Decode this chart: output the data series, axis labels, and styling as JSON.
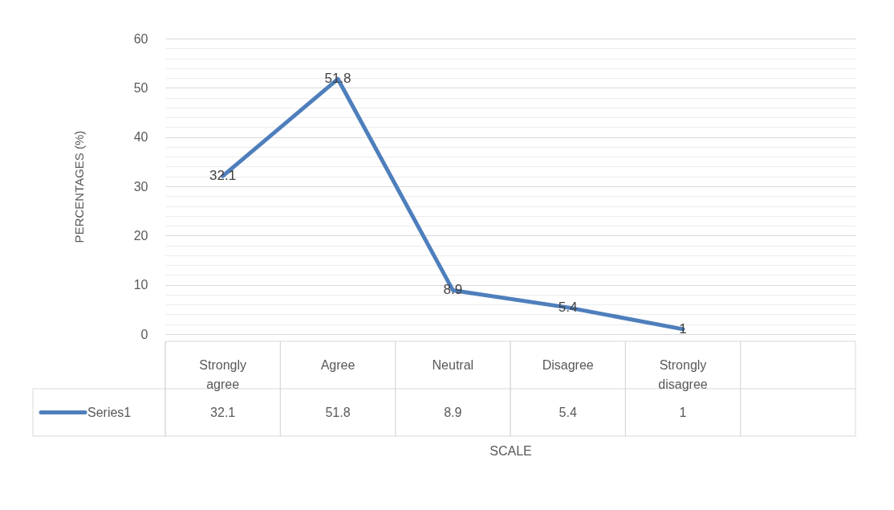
{
  "chart_data": {
    "type": "line",
    "ylabel": "PERCENTAGES (%)",
    "xlabel": "SCALE",
    "categories": [
      "Strongly agree",
      "Agree",
      "Neutral",
      "Disagree",
      "Strongly disagree",
      null
    ],
    "series": [
      {
        "name": "Series1",
        "color": "#4e7fbc",
        "values": [
          32.1,
          51.8,
          8.9,
          5.4,
          1,
          null
        ]
      }
    ],
    "annotations": [
      {
        "text": "32.1",
        "x": "Strongly agree",
        "y": 32.1
      },
      {
        "text": "51.8",
        "x": "Agree",
        "y": 51.8
      },
      {
        "text": "8.9",
        "x": "Neutral",
        "y": 8.9
      },
      {
        "text": "5.4",
        "x": "Disagree",
        "y": 5.4
      },
      {
        "text": "1",
        "x": "Strongly disagree",
        "y": 1
      }
    ],
    "ylim": [
      0,
      60
    ],
    "yticks": [
      0,
      {
        "value": 2,
        "label": null
      },
      {
        "value": 4,
        "label": null
      },
      {
        "value": 6,
        "label": null
      },
      {
        "value": 8,
        "label": null
      },
      10,
      {
        "value": 12,
        "label": null
      },
      {
        "value": 14,
        "label": null
      },
      {
        "value": 16,
        "label": null
      },
      {
        "value": 18,
        "label": null
      },
      20,
      {
        "value": 22,
        "label": null
      },
      {
        "value": 24,
        "label": null
      },
      {
        "value": 26,
        "label": null
      },
      {
        "value": 28,
        "label": null
      },
      30,
      {
        "value": 32,
        "label": null
      },
      {
        "value": 34,
        "label": null
      },
      {
        "value": 36,
        "label": null
      },
      {
        "value": 38,
        "label": null
      },
      40,
      {
        "value": 42,
        "label": null
      },
      {
        "value": 44,
        "label": null
      },
      {
        "value": 46,
        "label": null
      },
      {
        "value": 48,
        "label": null
      },
      50,
      {
        "value": 52,
        "label": null
      },
      {
        "value": 54,
        "label": null
      },
      {
        "value": 56,
        "label": null
      },
      {
        "value": 58,
        "label": null
      },
      60
    ],
    "grid": true,
    "data_labels": true,
    "legend": "bottom",
    "marker": "none",
    "line_style": "solid"
  }
}
